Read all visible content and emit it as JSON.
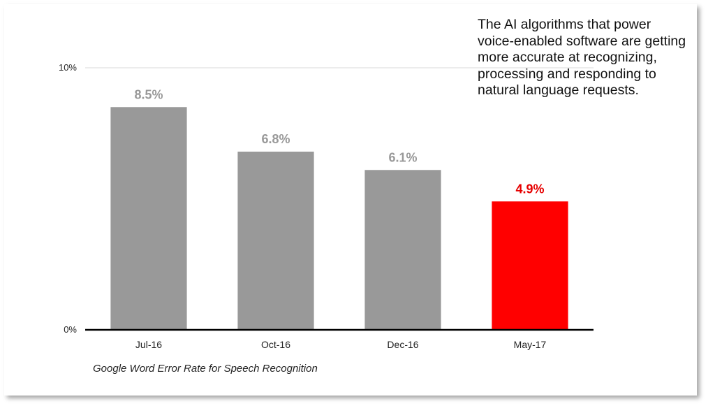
{
  "callout_text": "The AI algorithms that power voice-enabled software are getting more accurate at recognizing, processing and responding to natural language requests.",
  "caption": "Google Word Error Rate for Speech Recognition",
  "colors": {
    "bar": "#999999",
    "highlight": "#ff0000",
    "label": "#999999",
    "highlight_label": "#e60000",
    "axis": "#000000",
    "grid": "#d9d9d9"
  },
  "chart_data": {
    "type": "bar",
    "categories": [
      "Jul-16",
      "Oct-16",
      "Dec-16",
      "May-17"
    ],
    "values": [
      8.5,
      6.8,
      6.1,
      4.9
    ],
    "value_labels": [
      "8.5%",
      "6.8%",
      "6.1%",
      "4.9%"
    ],
    "highlight_index": 3,
    "yticks": [
      {
        "value": 0,
        "label": "0%"
      },
      {
        "value": 10,
        "label": "10%"
      }
    ],
    "ylim": [
      0,
      10
    ],
    "grid": true
  }
}
